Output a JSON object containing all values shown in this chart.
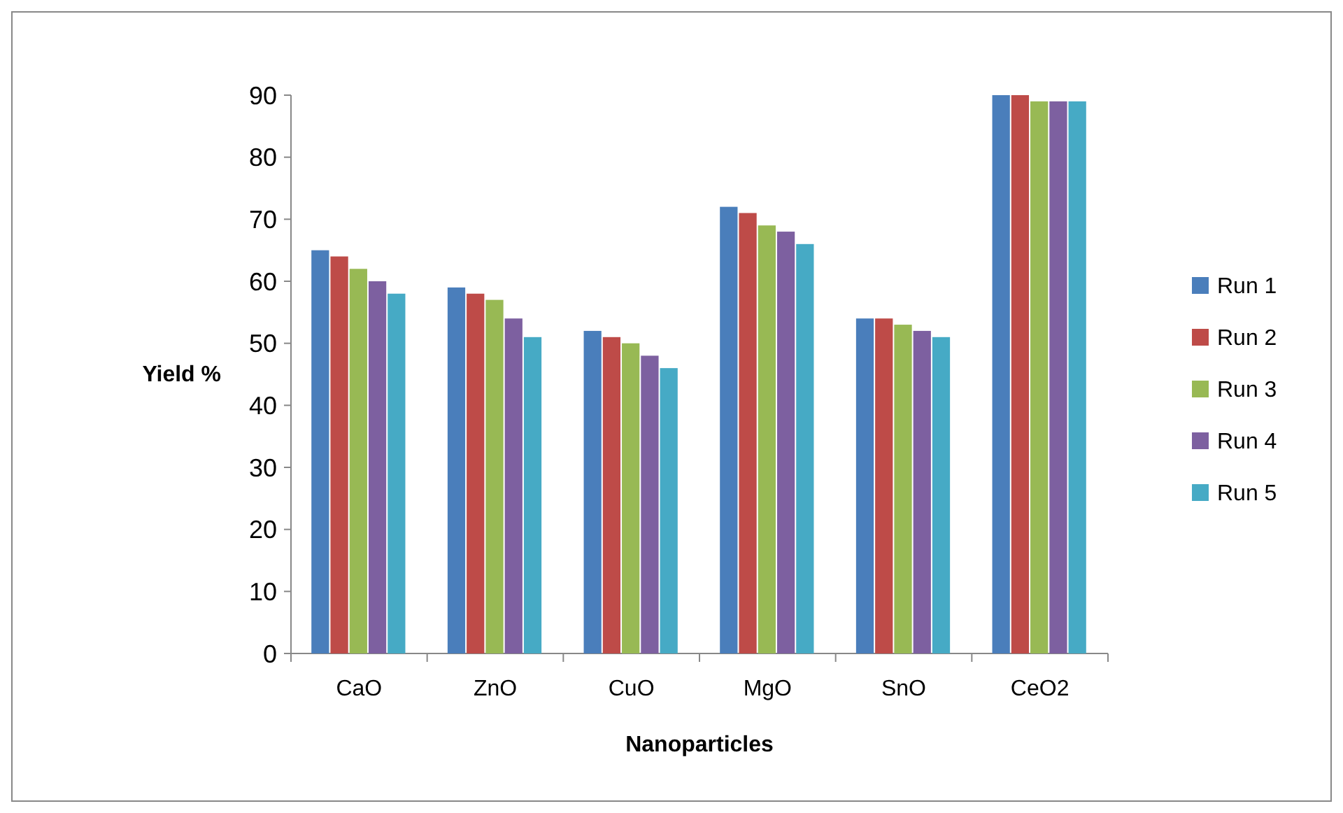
{
  "chart_data": {
    "type": "bar",
    "xlabel": "Nanoparticles",
    "ylabel": "Yield %",
    "categories": [
      "CaO",
      "ZnO",
      "CuO",
      "MgO",
      "SnO",
      "CeO2"
    ],
    "series": [
      {
        "name": "Run 1",
        "color": "#4a7ebb",
        "values": [
          65,
          59,
          52,
          72,
          54,
          90
        ]
      },
      {
        "name": "Run 2",
        "color": "#be4b48",
        "values": [
          64,
          58,
          51,
          71,
          54,
          90
        ]
      },
      {
        "name": "Run 3",
        "color": "#98b954",
        "values": [
          62,
          57,
          50,
          69,
          53,
          89
        ]
      },
      {
        "name": "Run 4",
        "color": "#7d60a0",
        "values": [
          60,
          54,
          48,
          68,
          52,
          89
        ]
      },
      {
        "name": "Run 5",
        "color": "#46aac5",
        "values": [
          58,
          51,
          46,
          66,
          51,
          89
        ]
      }
    ],
    "ylim": [
      0,
      90
    ],
    "yticks": [
      0,
      10,
      20,
      30,
      40,
      50,
      60,
      70,
      80,
      90
    ],
    "grid": false,
    "legend": "right"
  }
}
